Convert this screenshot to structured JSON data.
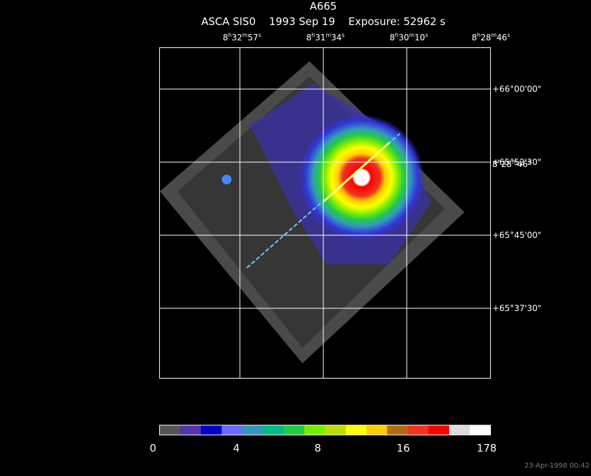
{
  "title": "A665",
  "subtitle": "ASCA SIS0    1993 Sep 19    Exposure: 52962 s",
  "ra_labels": [
    "8h32m57s",
    "8h31m34s",
    "8h30m10s",
    "8h28m46s"
  ],
  "dec_labels": [
    "+66°00'00\"",
    "+65°52'30\"",
    "+65°45'00\"",
    "+65°37'30\""
  ],
  "overlap_label": "8h28m46s",
  "colorbar": {
    "labels": [
      "0",
      "4",
      "8",
      "16",
      "178"
    ],
    "colors": [
      "#555555",
      "#5533aa",
      "#0000cc",
      "#6a6aff",
      "#3399bb",
      "#00bb88",
      "#22cc44",
      "#77ee00",
      "#bbdd00",
      "#ffff00",
      "#ffcc00",
      "#b86a10",
      "#ee3322",
      "#ff0000",
      "#dddddd",
      "#ffffff"
    ]
  },
  "timestamp": "23-Apr-1998 00:42"
}
